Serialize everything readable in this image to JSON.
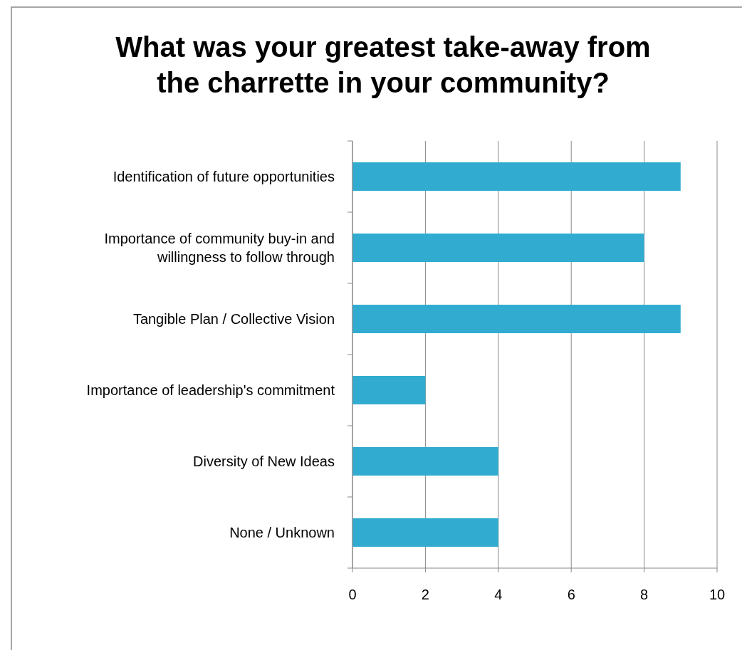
{
  "chart_data": {
    "type": "bar",
    "orientation": "horizontal",
    "title": "What was your greatest take-away from the charrette in your community?",
    "categories": [
      "Identification of future opportunities",
      "Importance of community buy-in and willingness to follow through",
      "Tangible Plan / Collective Vision",
      "Importance of leadership's commitment",
      "Diversity of New Ideas",
      "None / Unknown"
    ],
    "values": [
      9,
      8,
      9,
      2,
      4,
      4
    ],
    "color": "#31acd0",
    "xlim": [
      0,
      10
    ],
    "xticks": [
      0,
      2,
      4,
      6,
      8,
      10
    ],
    "grid": "x"
  }
}
